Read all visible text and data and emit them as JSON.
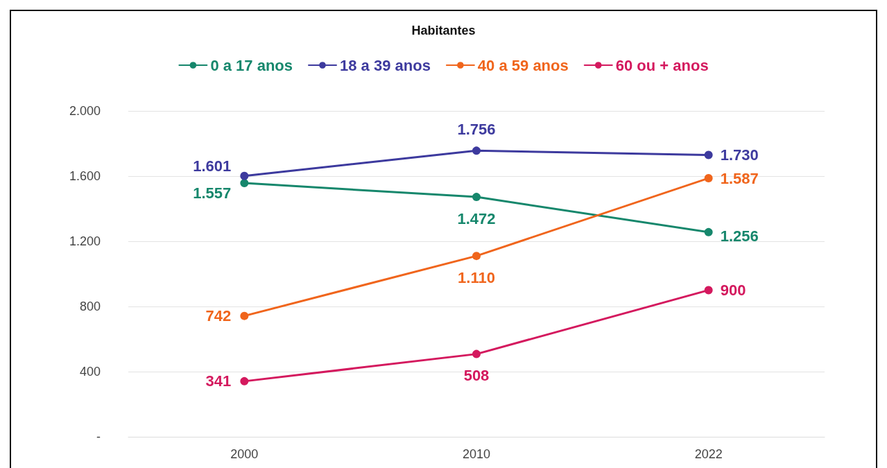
{
  "chart_data": {
    "type": "line",
    "title": "Habitantes",
    "categories": [
      "2000",
      "2010",
      "2022"
    ],
    "series": [
      {
        "name": "0 a 17 anos",
        "color": "#16876c",
        "values": [
          1557,
          1472,
          1256
        ],
        "value_labels": [
          "1.557",
          "1.472",
          "1.256"
        ]
      },
      {
        "name": "18 a 39 anos",
        "color": "#3d3a9e",
        "values": [
          1601,
          1756,
          1730
        ],
        "value_labels": [
          "1.601",
          "1.756",
          "1.730"
        ]
      },
      {
        "name": "40 a 59 anos",
        "color": "#f0651c",
        "values": [
          742,
          1110,
          1587
        ],
        "value_labels": [
          "742",
          "1.110",
          "1.587"
        ]
      },
      {
        "name": "60 ou + anos",
        "color": "#d4195e",
        "values": [
          341,
          508,
          900
        ],
        "value_labels": [
          "341",
          "508",
          "900"
        ]
      }
    ],
    "ylim": [
      0,
      2000
    ],
    "yticks": [
      {
        "value": 0,
        "label": "-"
      },
      400,
      800,
      {
        "value": 1200,
        "label": "1.200"
      },
      {
        "value": 1600,
        "label": "1.600"
      },
      {
        "value": 2000,
        "label": "2.000"
      }
    ],
    "grid": "y",
    "legend": "top",
    "marker": "circle",
    "line_style": "solid"
  }
}
